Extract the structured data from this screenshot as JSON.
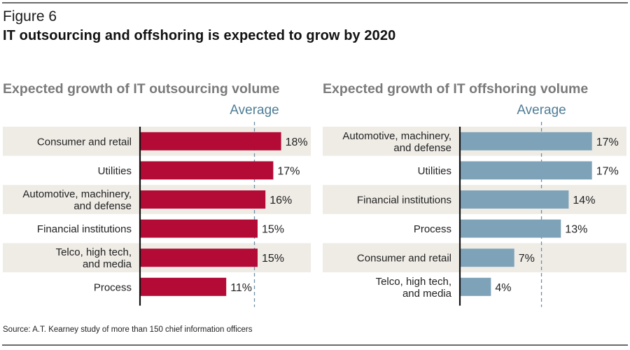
{
  "figure_label": "Figure 6",
  "figure_title": "IT outsourcing and offshoring is expected to grow by 2020",
  "source": "Source: A.T. Kearney study of more than 150 chief information officers",
  "colors": {
    "outsourcing_bar": "#b30a36",
    "offshoring_bar": "#7ea3b9",
    "band": "#efece6",
    "average_line": "#6f8fa3",
    "average_text": "#4f7d97",
    "axis": "#111111"
  },
  "chart_data": [
    {
      "type": "bar",
      "orientation": "horizontal",
      "title": "Expected growth of IT outsourcing volume",
      "categories": [
        [
          "Consumer and retail"
        ],
        [
          "Utilities"
        ],
        [
          "Automotive, machinery,",
          "and defense"
        ],
        [
          "Financial institutions"
        ],
        [
          "Telco, high tech,",
          "and media"
        ],
        [
          "Process"
        ]
      ],
      "values": [
        18,
        17,
        16,
        15,
        15,
        11
      ],
      "labels": [
        "18%",
        "17%",
        "16%",
        "15%",
        "15%",
        "11%"
      ],
      "unit": "%",
      "reference_line": {
        "label": "Average",
        "value": 14.6
      },
      "xlim": [
        0,
        20
      ],
      "grid": false
    },
    {
      "type": "bar",
      "orientation": "horizontal",
      "title": "Expected growth of IT offshoring volume",
      "categories": [
        [
          "Automotive, machinery,",
          "and defense"
        ],
        [
          "Utilities"
        ],
        [
          "Financial institutions"
        ],
        [
          "Process"
        ],
        [
          "Consumer and retail"
        ],
        [
          "Telco, high tech,",
          "and media"
        ]
      ],
      "values": [
        17,
        17,
        14,
        13,
        7,
        4
      ],
      "labels": [
        "17%",
        "17%",
        "14%",
        "13%",
        "7%",
        "4%"
      ],
      "unit": "%",
      "reference_line": {
        "label": "Average",
        "value": 10.5
      },
      "xlim": [
        0,
        20
      ],
      "grid": false
    }
  ]
}
